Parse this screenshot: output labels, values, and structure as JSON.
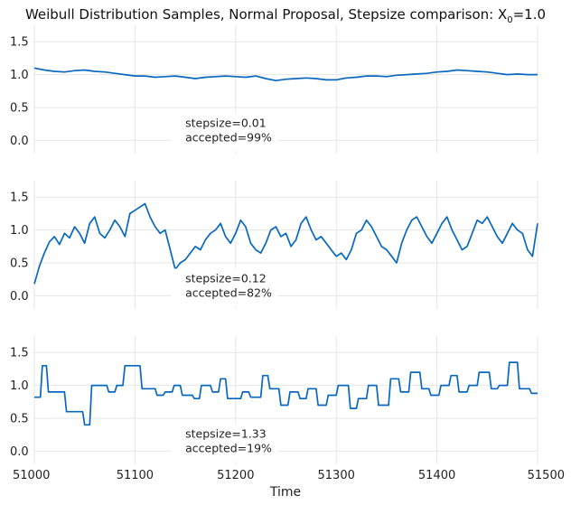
{
  "chart_data": {
    "type": "line",
    "title": "Weibull Distribution Samples, Normal Proposal, Stepsize comparison: X",
    "title_subscript": "0",
    "title_suffix": "=1.0",
    "xlabel": "Time",
    "xlim": [
      51000,
      51500
    ],
    "xticks": [
      51000,
      51100,
      51200,
      51300,
      51400,
      51500
    ],
    "ylim": [
      -0.2,
      1.75
    ],
    "yticks": [
      0.0,
      0.5,
      1.0,
      1.5
    ],
    "grid": true,
    "line_color": "#0868c0",
    "panels": [
      {
        "annotation": [
          "stepsize=0.01",
          "accepted=99%"
        ],
        "series": {
          "x": [
            51000,
            51010,
            51020,
            51030,
            51040,
            51050,
            51060,
            51070,
            51080,
            51090,
            51100,
            51110,
            51120,
            51130,
            51140,
            51150,
            51160,
            51170,
            51180,
            51190,
            51200,
            51210,
            51220,
            51230,
            51240,
            51250,
            51260,
            51270,
            51280,
            51290,
            51300,
            51310,
            51320,
            51330,
            51340,
            51350,
            51360,
            51370,
            51380,
            51390,
            51400,
            51410,
            51420,
            51430,
            51440,
            51450,
            51460,
            51470,
            51480,
            51490,
            51500
          ],
          "y": [
            1.1,
            1.07,
            1.05,
            1.04,
            1.06,
            1.07,
            1.05,
            1.04,
            1.02,
            1.0,
            0.98,
            0.98,
            0.96,
            0.97,
            0.98,
            0.96,
            0.94,
            0.96,
            0.97,
            0.98,
            0.97,
            0.96,
            0.98,
            0.94,
            0.91,
            0.93,
            0.94,
            0.95,
            0.94,
            0.92,
            0.92,
            0.95,
            0.96,
            0.98,
            0.98,
            0.97,
            0.99,
            1.0,
            1.01,
            1.02,
            1.04,
            1.05,
            1.07,
            1.06,
            1.05,
            1.04,
            1.02,
            1.0,
            1.01,
            1.0,
            1.0
          ]
        }
      },
      {
        "annotation": [
          "stepsize=0.12",
          "accepted=82%"
        ],
        "series": {
          "x": [
            51000,
            51005,
            51010,
            51015,
            51020,
            51025,
            51030,
            51035,
            51040,
            51045,
            51050,
            51055,
            51060,
            51065,
            51070,
            51075,
            51080,
            51085,
            51090,
            51095,
            51100,
            51105,
            51110,
            51115,
            51120,
            51125,
            51130,
            51135,
            51140,
            51145,
            51150,
            51155,
            51160,
            51165,
            51170,
            51175,
            51180,
            51185,
            51190,
            51195,
            51200,
            51205,
            51210,
            51215,
            51220,
            51225,
            51230,
            51235,
            51240,
            51245,
            51250,
            51255,
            51260,
            51265,
            51270,
            51275,
            51280,
            51285,
            51290,
            51295,
            51300,
            51305,
            51310,
            51315,
            51320,
            51325,
            51330,
            51335,
            51340,
            51345,
            51350,
            51355,
            51360,
            51365,
            51370,
            51375,
            51380,
            51385,
            51390,
            51395,
            51400,
            51405,
            51410,
            51415,
            51420,
            51425,
            51430,
            51435,
            51440,
            51445,
            51450,
            51455,
            51460,
            51465,
            51470,
            51475,
            51480,
            51485,
            51490,
            51495,
            51500
          ],
          "y": [
            0.18,
            0.45,
            0.65,
            0.82,
            0.9,
            0.78,
            0.95,
            0.88,
            1.05,
            0.95,
            0.8,
            1.1,
            1.2,
            0.95,
            0.88,
            1.0,
            1.15,
            1.05,
            0.9,
            1.25,
            1.3,
            1.35,
            1.4,
            1.2,
            1.05,
            0.95,
            1.0,
            0.7,
            0.4,
            0.5,
            0.55,
            0.65,
            0.75,
            0.7,
            0.85,
            0.95,
            1.0,
            1.1,
            0.9,
            0.8,
            0.95,
            1.15,
            1.05,
            0.8,
            0.7,
            0.65,
            0.8,
            1.0,
            1.05,
            0.9,
            0.95,
            0.75,
            0.85,
            1.1,
            1.2,
            1.0,
            0.85,
            0.9,
            0.8,
            0.7,
            0.6,
            0.65,
            0.55,
            0.7,
            0.95,
            1.0,
            1.15,
            1.05,
            0.9,
            0.75,
            0.7,
            0.6,
            0.5,
            0.8,
            1.0,
            1.15,
            1.2,
            1.05,
            0.9,
            0.8,
            0.95,
            1.1,
            1.2,
            1.0,
            0.85,
            0.7,
            0.75,
            0.95,
            1.15,
            1.1,
            1.2,
            1.05,
            0.9,
            0.8,
            0.95,
            1.1,
            1.0,
            0.95,
            0.7,
            0.6,
            1.1
          ]
        }
      },
      {
        "annotation": [
          "stepsize=1.33",
          "accepted=19%"
        ],
        "series": {
          "x": [
            51000,
            51006,
            51008,
            51012,
            51014,
            51030,
            51032,
            51048,
            51050,
            51055,
            51057,
            51072,
            51074,
            51080,
            51082,
            51088,
            51090,
            51105,
            51107,
            51120,
            51122,
            51128,
            51130,
            51137,
            51139,
            51145,
            51147,
            51157,
            51159,
            51164,
            51166,
            51175,
            51177,
            51183,
            51185,
            51190,
            51192,
            51205,
            51207,
            51213,
            51215,
            51225,
            51227,
            51232,
            51234,
            51243,
            51245,
            51252,
            51254,
            51262,
            51264,
            51270,
            51272,
            51280,
            51282,
            51290,
            51292,
            51300,
            51302,
            51312,
            51314,
            51320,
            51322,
            51330,
            51332,
            51340,
            51342,
            51352,
            51354,
            51362,
            51364,
            51372,
            51374,
            51383,
            51385,
            51392,
            51394,
            51402,
            51404,
            51412,
            51414,
            51420,
            51422,
            51430,
            51432,
            51440,
            51442,
            51452,
            51454,
            51460,
            51462,
            51470,
            51472,
            51480,
            51482,
            51492,
            51494,
            51500
          ],
          "y": [
            0.82,
            0.82,
            1.3,
            1.3,
            0.9,
            0.9,
            0.6,
            0.6,
            0.4,
            0.4,
            1.0,
            1.0,
            0.9,
            0.9,
            1.0,
            1.0,
            1.3,
            1.3,
            0.95,
            0.95,
            0.85,
            0.85,
            0.9,
            0.9,
            1.0,
            1.0,
            0.85,
            0.85,
            0.8,
            0.8,
            1.0,
            1.0,
            0.9,
            0.9,
            1.1,
            1.1,
            0.8,
            0.8,
            0.9,
            0.9,
            0.82,
            0.82,
            1.15,
            1.15,
            0.95,
            0.95,
            0.7,
            0.7,
            0.9,
            0.9,
            0.8,
            0.8,
            0.95,
            0.95,
            0.7,
            0.7,
            0.85,
            0.85,
            1.0,
            1.0,
            0.65,
            0.65,
            0.8,
            0.8,
            1.0,
            1.0,
            0.7,
            0.7,
            1.1,
            1.1,
            0.9,
            0.9,
            1.2,
            1.2,
            0.95,
            0.95,
            0.85,
            0.85,
            1.0,
            1.0,
            1.15,
            1.15,
            0.9,
            0.9,
            1.0,
            1.0,
            1.2,
            1.2,
            0.95,
            0.95,
            1.0,
            1.0,
            1.35,
            1.35,
            0.95,
            0.95,
            0.88,
            0.88
          ]
        }
      }
    ]
  }
}
